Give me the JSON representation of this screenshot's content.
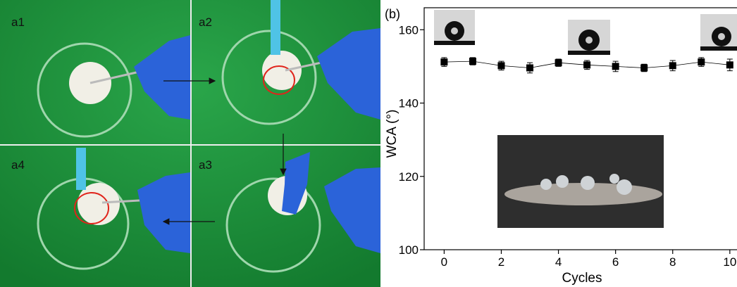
{
  "panels": [
    {
      "label": "a1"
    },
    {
      "label": "a2"
    },
    {
      "label": "a4"
    },
    {
      "label": "a3"
    }
  ],
  "chart_data": {
    "type": "line",
    "label": "(b)",
    "x_label": "Cycles",
    "y_label": "WCA (°)",
    "x": [
      0,
      1,
      2,
      3,
      4,
      5,
      6,
      7,
      8,
      9,
      10
    ],
    "series": [
      {
        "color": "#000000",
        "values": [
          151.2,
          151.4,
          150.2,
          149.6,
          151.0,
          150.4,
          150.0,
          149.6,
          150.2,
          151.2,
          150.4
        ],
        "errors": [
          1.2,
          1.0,
          1.2,
          1.4,
          1.0,
          1.2,
          1.4,
          1.0,
          1.4,
          1.2,
          1.6
        ]
      }
    ],
    "xlim": [
      -0.7,
      10.3
    ],
    "ylim": [
      100,
      166
    ],
    "xticks": [
      0,
      2,
      4,
      6,
      8,
      10
    ],
    "yticks": [
      100,
      120,
      140,
      160
    ]
  }
}
